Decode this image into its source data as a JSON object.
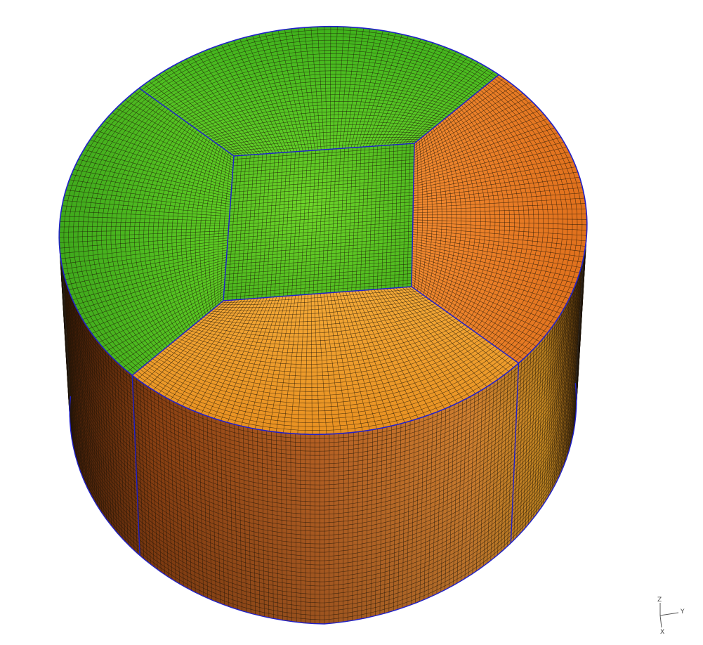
{
  "colors": {
    "background": "#ffffff",
    "edge": "#2020c8",
    "mesh": "#1e1408",
    "green_light": "#5fd31f",
    "green": "#3aa81a",
    "green_dark": "#2c8a12",
    "orange_light": "#f0a030",
    "orange": "#e07a28",
    "orange_dark": "#b55018",
    "side_dark": "#5a2a0a",
    "axis": "#555555"
  },
  "mesh": {
    "type": "structured hexahedral cylinder (o-grid)"
  },
  "triad": {
    "labels": {
      "z": "Z",
      "y": "Y",
      "x": "X"
    }
  }
}
